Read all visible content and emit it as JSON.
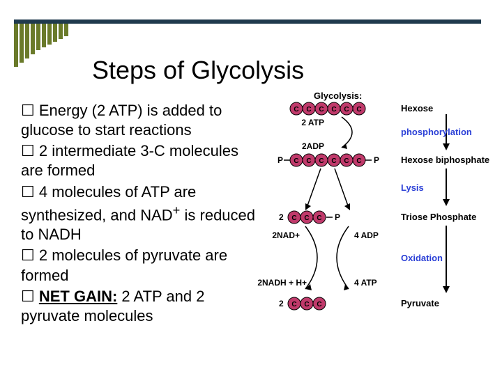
{
  "title": "Steps of Glycolysis",
  "decor": {
    "topbar_color": "#1f3a4d",
    "bars_color": "#6a7a2a",
    "bar_heights": [
      62,
      56,
      50,
      44,
      38,
      34,
      30,
      26,
      22,
      18
    ]
  },
  "bullets": [
    {
      "prefix": "☐ ",
      "html": "Energy (2 ATP) is added to glucose to start reactions"
    },
    {
      "prefix": "☐ ",
      "html": "2 intermediate 3-C molecules are formed"
    },
    {
      "prefix": "☐ ",
      "html": "4 molecules of ATP are synthesized, and NAD<sup>+</sup> is reduced to NADH"
    },
    {
      "prefix": "☐ ",
      "html": "2 molecules of pyruvate are formed"
    },
    {
      "prefix": "☐ ",
      "html": "<b><u>NET GAIN:</u></b> 2 ATP and 2 pyruvate molecules"
    }
  ],
  "diagram": {
    "header": "Glycolysis:",
    "carbon_color": "#c03a6b",
    "carbon_stroke": "#000000",
    "arrow_color": "#000000",
    "stages": [
      {
        "label": "Hexose",
        "color": "#000000"
      },
      {
        "label": "phosphorylation",
        "color": "#2a3fd6"
      },
      {
        "label": "Hexose biphosphate",
        "color": "#000000"
      },
      {
        "label": "Lysis",
        "color": "#2a3fd6"
      },
      {
        "label": "Triose Phosphate",
        "color": "#000000"
      },
      {
        "label": "Oxidation",
        "color": "#2a3fd6"
      },
      {
        "label": "Pyruvate",
        "color": "#000000"
      }
    ],
    "side_labels": {
      "atp2": "2 ATP",
      "adp2": "2ADP",
      "two": "2",
      "adp4": "4 ADP",
      "nad2": "2NAD+",
      "nadh2": "2NADH + H+",
      "atp4": "4 ATP",
      "p": "P"
    }
  }
}
